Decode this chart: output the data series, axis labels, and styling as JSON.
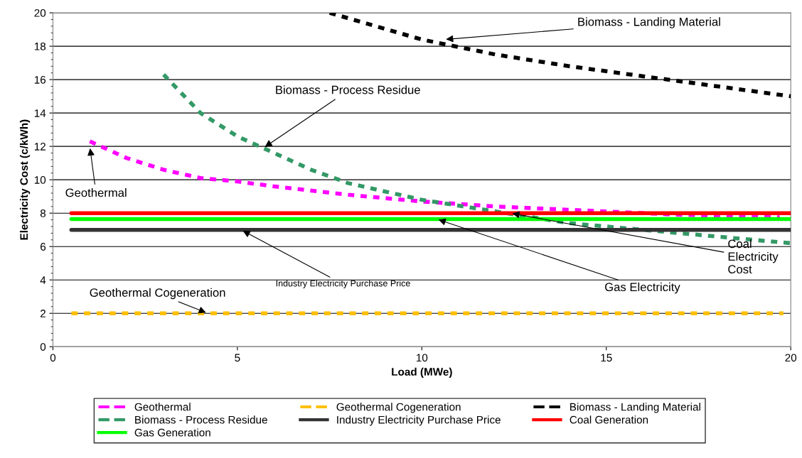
{
  "chart_data": {
    "type": "line",
    "xlabel": "Load (MWe)",
    "ylabel": "Electricity Cost (c/kWh)",
    "xlim": [
      0,
      20
    ],
    "xticks": [
      0,
      5,
      10,
      15,
      20
    ],
    "ylim": [
      0,
      20
    ],
    "yticks": [
      0,
      2,
      4,
      6,
      8,
      10,
      12,
      14,
      16,
      18,
      20
    ],
    "grid": "y",
    "legend": "bottom",
    "series": [
      {
        "name": "Geothermal",
        "color": "#ff00ff",
        "line_style": "dashed",
        "x": [
          1,
          1.5,
          2,
          3,
          4,
          5,
          6,
          8,
          10,
          12,
          15,
          17,
          19.7
        ],
        "values": [
          12.3,
          11.8,
          11.3,
          10.6,
          10.1,
          9.9,
          9.6,
          9.1,
          8.7,
          8.4,
          8.1,
          7.9,
          7.75
        ]
      },
      {
        "name": "Geothermal Cogeneration",
        "color": "#ffc000",
        "line_style": "dashed",
        "x": [
          0.5,
          19.8
        ],
        "values": [
          2,
          2
        ]
      },
      {
        "name": "Biomass - Landing Material",
        "color": "#000000",
        "line_style": "dashed",
        "x": [
          7.5,
          10,
          12,
          14,
          16,
          18,
          20
        ],
        "values": [
          20,
          18.4,
          17.5,
          16.8,
          16.2,
          15.6,
          15.0
        ]
      },
      {
        "name": "Biomass - Process Residue",
        "color": "#339966",
        "line_style": "dashed",
        "x": [
          3,
          4,
          5,
          5.7,
          7,
          8,
          10,
          12,
          14,
          16,
          18,
          20
        ],
        "values": [
          16.3,
          14.0,
          12.6,
          11.9,
          10.6,
          9.8,
          8.8,
          8.1,
          7.4,
          7.0,
          6.6,
          6.2
        ]
      },
      {
        "name": "Industry Electricity Purchase Price",
        "color": "#333333",
        "line_style": "solid",
        "x": [
          0.5,
          20
        ],
        "values": [
          7,
          7
        ]
      },
      {
        "name": "Coal Generation",
        "color": "#ff0000",
        "line_style": "solid",
        "x": [
          0.5,
          20
        ],
        "values": [
          8,
          8
        ]
      },
      {
        "name": "Gas Generation",
        "color": "#00ff00",
        "line_style": "solid",
        "x": [
          0.5,
          20
        ],
        "values": [
          7.65,
          7.65
        ]
      }
    ],
    "annotations": [
      {
        "text": "Biomass - Landing Material",
        "x": 10.6,
        "y": 18.4
      },
      {
        "text": "Biomass - Process Residue",
        "x": 5.7,
        "y": 11.9
      },
      {
        "text": "Geothermal",
        "x": 1.0,
        "y": 12.0
      },
      {
        "text": "Geothermal Cogeneration",
        "x": 4.2,
        "y": 2.0
      },
      {
        "text": "Industry Electricity Purchase Price",
        "x": 5.1,
        "y": 7.0
      },
      {
        "text": "Gas Electricity",
        "x": 10.4,
        "y": 7.65
      },
      {
        "text": "Coal Electricity Cost",
        "x": 12.4,
        "y": 8.0
      }
    ]
  }
}
